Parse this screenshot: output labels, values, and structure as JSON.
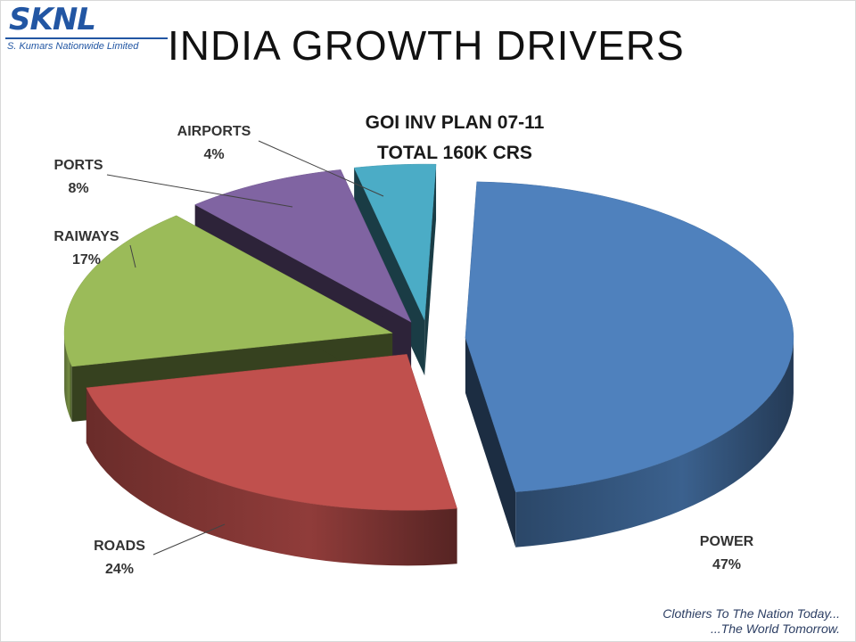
{
  "slide": {
    "logo_text": "SKNL",
    "logo_subtext": "S. Kumars Nationwide Limited",
    "title": "INDIA GROWTH DRIVERS",
    "tagline_1": "Clothiers To The Nation Today...",
    "tagline_2": "...The World Tomorrow."
  },
  "chart_data": {
    "type": "pie",
    "title": "GOI INV PLAN 07-11",
    "subtitle": "TOTAL 160K CRS",
    "categories": [
      "POWER",
      "ROADS",
      "RAIWAYS",
      "PORTS",
      "AIRPORTS"
    ],
    "values": [
      47,
      24,
      17,
      8,
      4
    ],
    "labels": [
      "47%",
      "24%",
      "17%",
      "8%",
      "4%"
    ],
    "colors": [
      "#4f81bd",
      "#c0504d",
      "#9bbb59",
      "#8064a2",
      "#4bacc6"
    ],
    "exploded": true,
    "three_d": true
  }
}
